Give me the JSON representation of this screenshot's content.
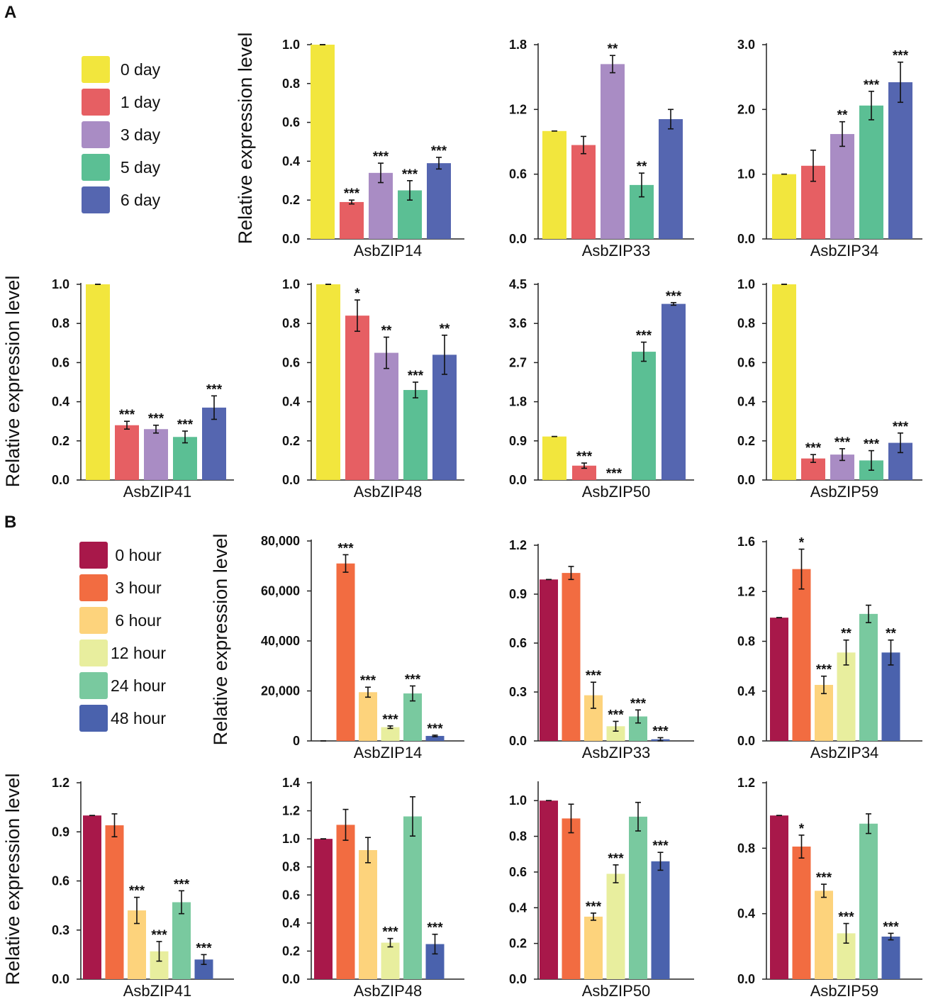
{
  "figure": {
    "panel_a_label": "A",
    "panel_b_label": "B",
    "y_axis_label": "Relative expression level"
  },
  "colors": {
    "day": [
      "#f2e63d",
      "#e65f63",
      "#a98cc4",
      "#5bbf94",
      "#5566b0"
    ],
    "hour": [
      "#a8184a",
      "#f26c41",
      "#fdd37c",
      "#e8ee9e",
      "#79c99f",
      "#4a62ad"
    ]
  },
  "legend_a": {
    "labels": [
      "0 day",
      "1 day",
      "3 day",
      "5 day",
      "6 day"
    ]
  },
  "legend_b": {
    "labels": [
      "0 hour",
      "3 hour",
      "6 hour",
      "12 hour",
      "24 hour",
      "48 hour"
    ]
  },
  "chart_data": [
    {
      "type": "bar",
      "panel": "A",
      "gene": "AsbZIP14",
      "categories": [
        "0 day",
        "1 day",
        "3 day",
        "5 day",
        "6 day"
      ],
      "values": [
        1.0,
        0.19,
        0.34,
        0.25,
        0.39
      ],
      "errors": [
        0,
        0.01,
        0.05,
        0.05,
        0.03
      ],
      "significance": [
        "",
        "***",
        "***",
        "***",
        "***"
      ],
      "yticks": [
        "0.0",
        "0.2",
        "0.4",
        "0.6",
        "0.8",
        "1.0"
      ],
      "ylim": [
        0,
        1.0
      ],
      "ylabel": "Relative expression level"
    },
    {
      "type": "bar",
      "panel": "A",
      "gene": "AsbZIP33",
      "categories": [
        "0 day",
        "1 day",
        "3 day",
        "5 day",
        "6 day"
      ],
      "values": [
        1.0,
        0.87,
        1.62,
        0.5,
        1.11
      ],
      "errors": [
        0,
        0.08,
        0.08,
        0.11,
        0.09
      ],
      "significance": [
        "",
        "",
        "**",
        "**",
        ""
      ],
      "yticks": [
        "0.0",
        "0.6",
        "1.2",
        "1.8"
      ],
      "ylim": [
        0,
        1.8
      ],
      "ylabel": ""
    },
    {
      "type": "bar",
      "panel": "A",
      "gene": "AsbZIP34",
      "categories": [
        "0 day",
        "1 day",
        "3 day",
        "5 day",
        "6 day"
      ],
      "values": [
        1.0,
        1.13,
        1.62,
        2.06,
        2.42
      ],
      "errors": [
        0,
        0.24,
        0.19,
        0.22,
        0.31
      ],
      "significance": [
        "",
        "",
        "**",
        "***",
        "***"
      ],
      "yticks": [
        "0.0",
        "1.0",
        "2.0",
        "3.0"
      ],
      "ylim": [
        0,
        3.0
      ],
      "ylabel": ""
    },
    {
      "type": "bar",
      "panel": "A",
      "gene": "AsbZIP41",
      "categories": [
        "0 day",
        "1 day",
        "3 day",
        "5 day",
        "6 day"
      ],
      "values": [
        1.0,
        0.28,
        0.26,
        0.22,
        0.37
      ],
      "errors": [
        0,
        0.02,
        0.02,
        0.03,
        0.06
      ],
      "significance": [
        "",
        "***",
        "***",
        "***",
        "***"
      ],
      "yticks": [
        "0.0",
        "0.2",
        "0.4",
        "0.6",
        "0.8",
        "1.0"
      ],
      "ylim": [
        0,
        1.0
      ],
      "ylabel": "Relative expression level"
    },
    {
      "type": "bar",
      "panel": "A",
      "gene": "AsbZIP48",
      "categories": [
        "0 day",
        "1 day",
        "3 day",
        "5 day",
        "6 day"
      ],
      "values": [
        1.0,
        0.84,
        0.65,
        0.46,
        0.64
      ],
      "errors": [
        0,
        0.08,
        0.08,
        0.04,
        0.1
      ],
      "significance": [
        "",
        "*",
        "**",
        "***",
        "**"
      ],
      "yticks": [
        "0.0",
        "0.2",
        "0.4",
        "0.6",
        "0.8",
        "1.0"
      ],
      "ylim": [
        0,
        1.0
      ],
      "ylabel": ""
    },
    {
      "type": "bar",
      "panel": "A",
      "gene": "AsbZIP50",
      "categories": [
        "0 day",
        "1 day",
        "3 day",
        "5 day",
        "6 day"
      ],
      "values": [
        1.0,
        0.33,
        0.0,
        2.95,
        4.05
      ],
      "errors": [
        0,
        0.06,
        0,
        0.22,
        0.03
      ],
      "significance": [
        "",
        "***",
        "***",
        "***",
        "***"
      ],
      "yticks": [
        "0.0",
        "0.9",
        "1.8",
        "2.7",
        "3.6",
        "4.5"
      ],
      "ylim": [
        0,
        4.5
      ],
      "ylabel": ""
    },
    {
      "type": "bar",
      "panel": "A",
      "gene": "AsbZIP59",
      "categories": [
        "0 day",
        "1 day",
        "3 day",
        "5 day",
        "6 day"
      ],
      "values": [
        1.0,
        0.11,
        0.13,
        0.1,
        0.19
      ],
      "errors": [
        0,
        0.02,
        0.03,
        0.05,
        0.05
      ],
      "significance": [
        "",
        "***",
        "***",
        "***",
        "***"
      ],
      "yticks": [
        "0.0",
        "0.2",
        "0.4",
        "0.6",
        "0.8",
        "1.0"
      ],
      "ylim": [
        0,
        1.0
      ],
      "ylabel": ""
    },
    {
      "type": "bar",
      "panel": "B",
      "gene": "AsbZIP14",
      "categories": [
        "0 hour",
        "3 hour",
        "6 hour",
        "12 hour",
        "24 hour",
        "48 hour"
      ],
      "values": [
        1,
        71000,
        19500,
        5500,
        19000,
        2000
      ],
      "errors": [
        0,
        3500,
        2000,
        500,
        3000,
        300
      ],
      "significance": [
        "",
        "***",
        "***",
        "***",
        "***",
        "***"
      ],
      "yticks": [
        "0",
        "20,000",
        "40,000",
        "60,000",
        "80,000"
      ],
      "ylim": [
        0,
        80000
      ],
      "ylabel": "Relative expression level"
    },
    {
      "type": "bar",
      "panel": "B",
      "gene": "AsbZIP33",
      "categories": [
        "0 hour",
        "3 hour",
        "6 hour",
        "12 hour",
        "24 hour",
        "48 hour"
      ],
      "values": [
        0.99,
        1.03,
        0.28,
        0.09,
        0.15,
        0.01
      ],
      "errors": [
        0,
        0.04,
        0.08,
        0.03,
        0.04,
        0.01
      ],
      "significance": [
        "",
        "",
        "***",
        "***",
        "***",
        "***"
      ],
      "yticks": [
        "0.0",
        "0.3",
        "0.6",
        "0.9",
        "1.2"
      ],
      "ylim": [
        0,
        1.2
      ],
      "ylabel": ""
    },
    {
      "type": "bar",
      "panel": "B",
      "gene": "AsbZIP34",
      "categories": [
        "0 hour",
        "3 hour",
        "6 hour",
        "12 hour",
        "24 hour",
        "48 hour"
      ],
      "values": [
        0.99,
        1.38,
        0.45,
        0.71,
        1.02,
        0.71
      ],
      "errors": [
        0,
        0.16,
        0.07,
        0.1,
        0.07,
        0.1
      ],
      "significance": [
        "",
        "*",
        "***",
        "**",
        "",
        "**"
      ],
      "yticks": [
        "0.0",
        "0.4",
        "0.8",
        "1.2",
        "1.6"
      ],
      "ylim": [
        0,
        1.6
      ],
      "ylabel": ""
    },
    {
      "type": "bar",
      "panel": "B",
      "gene": "AsbZIP41",
      "categories": [
        "0 hour",
        "3 hour",
        "6 hour",
        "12 hour",
        "24 hour",
        "48 hour"
      ],
      "values": [
        1.0,
        0.94,
        0.42,
        0.17,
        0.47,
        0.12
      ],
      "errors": [
        0,
        0.07,
        0.08,
        0.06,
        0.07,
        0.03
      ],
      "significance": [
        "",
        "",
        "***",
        "***",
        "***",
        "***"
      ],
      "yticks": [
        "0.0",
        "0.3",
        "0.6",
        "0.9",
        "1.2"
      ],
      "ylim": [
        0,
        1.2
      ],
      "ylabel": "Relative expression level"
    },
    {
      "type": "bar",
      "panel": "B",
      "gene": "AsbZIP48",
      "categories": [
        "0 hour",
        "3 hour",
        "6 hour",
        "12 hour",
        "24 hour",
        "48 hour"
      ],
      "values": [
        1.0,
        1.1,
        0.92,
        0.26,
        1.16,
        0.25
      ],
      "errors": [
        0,
        0.11,
        0.09,
        0.03,
        0.14,
        0.07
      ],
      "significance": [
        "",
        "",
        "",
        "***",
        "",
        "***"
      ],
      "yticks": [
        "0.0",
        "0.2",
        "0.4",
        "0.6",
        "0.8",
        "1.0",
        "1.2",
        "1.4"
      ],
      "ylim": [
        0,
        1.4
      ],
      "ylabel": ""
    },
    {
      "type": "bar",
      "panel": "B",
      "gene": "AsbZIP50",
      "categories": [
        "0 hour",
        "3 hour",
        "6 hour",
        "12 hour",
        "24 hour",
        "48 hour"
      ],
      "values": [
        1.0,
        0.9,
        0.35,
        0.59,
        0.91,
        0.66
      ],
      "errors": [
        0,
        0.08,
        0.02,
        0.05,
        0.08,
        0.05
      ],
      "significance": [
        "",
        "",
        "***",
        "***",
        "",
        "***"
      ],
      "yticks": [
        "0.0",
        "0.2",
        "0.4",
        "0.6",
        "0.8",
        "1.0"
      ],
      "ylim": [
        0,
        1.1
      ],
      "ylabel": ""
    },
    {
      "type": "bar",
      "panel": "B",
      "gene": "AsbZIP59",
      "categories": [
        "0 hour",
        "3 hour",
        "6 hour",
        "12 hour",
        "24 hour",
        "48 hour"
      ],
      "values": [
        1.0,
        0.81,
        0.54,
        0.28,
        0.95,
        0.26
      ],
      "errors": [
        0,
        0.07,
        0.04,
        0.06,
        0.06,
        0.02
      ],
      "significance": [
        "",
        "*",
        "***",
        "***",
        "",
        "***"
      ],
      "yticks": [
        "0.0",
        "0.4",
        "0.8",
        "1.2"
      ],
      "ylim": [
        0,
        1.2
      ],
      "ylabel": ""
    }
  ]
}
